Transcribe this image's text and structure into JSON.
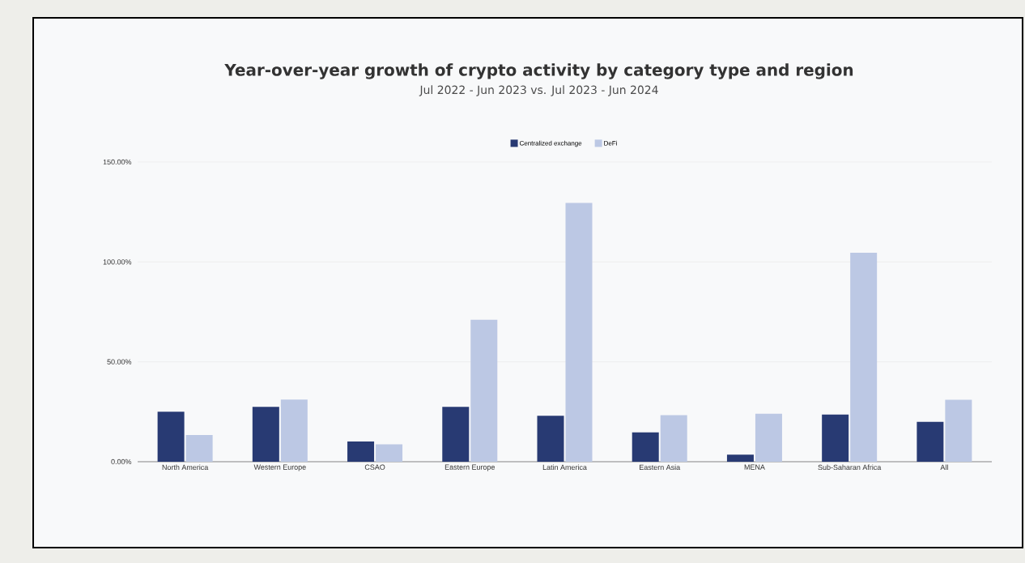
{
  "chart_data": {
    "type": "bar",
    "title": "Year-over-year growth of crypto activity by category type and region",
    "subtitle": "Jul 2022 - Jun 2023 vs. Jul 2023 - Jun 2024",
    "categories": [
      "North America",
      "Western Europe",
      "CSAO",
      "Eastern Europe",
      "Latin America",
      "Eastern Asia",
      "MENA",
      "Sub-Saharan Africa",
      "All"
    ],
    "series": [
      {
        "name": "Centralized exchange",
        "color": "#283a73",
        "values": [
          25.0,
          27.5,
          10.1,
          27.5,
          23.0,
          14.7,
          3.5,
          23.6,
          20.0
        ]
      },
      {
        "name": "DeFi",
        "color": "#bcc8e4",
        "values": [
          13.4,
          31.1,
          8.7,
          71.0,
          129.5,
          23.3,
          24.0,
          104.6,
          31.0
        ]
      }
    ],
    "ylim": [
      0,
      150
    ],
    "yticks": [
      {
        "value": 0,
        "label": "0.00%"
      },
      {
        "value": 50,
        "label": "50.00%"
      },
      {
        "value": 100,
        "label": "100.00%"
      },
      {
        "value": 150,
        "label": "150.00%"
      }
    ],
    "grid": "y",
    "legend": "top"
  }
}
